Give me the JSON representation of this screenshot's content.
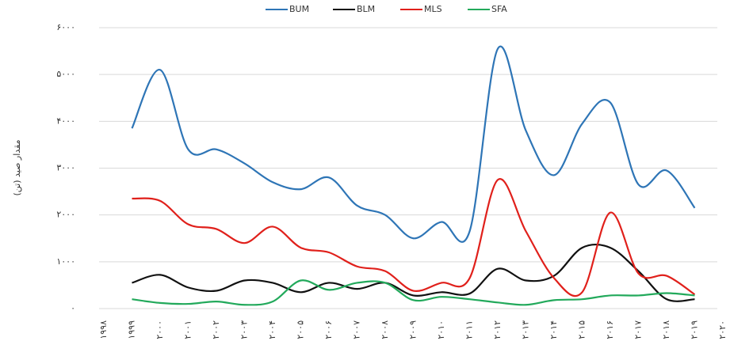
{
  "chart_data": {
    "type": "line",
    "y_label": "مقدار صید (تن)",
    "categories": [
      "۱۹۹۸",
      "۱۹۹۹",
      "۲۰۰۰",
      "۲۰۰۱",
      "۲۰۰۲",
      "۲۰۰۳",
      "۲۰۰۴",
      "۲۰۰۵",
      "۲۰۰۶",
      "۲۰۰۷",
      "۲۰۰۸",
      "۲۰۰۹",
      "۲۰۱۰",
      "۲۰۱۱",
      "۲۰۱۲",
      "۲۰۱۳",
      "۲۰۱۴",
      "۲۰۱۵",
      "۲۰۱۶",
      "۲۰۱۷",
      "۲۰۱۸",
      "۲۰۱۹",
      "۲۰۲۰"
    ],
    "series": [
      {
        "name": "BUM",
        "color": "#2e75b6",
        "values": [
          null,
          3850,
          5100,
          3400,
          3400,
          3100,
          2700,
          2550,
          2800,
          2200,
          2000,
          1500,
          1850,
          1650,
          5550,
          3800,
          2850,
          3950,
          4400,
          2650,
          2950,
          2150,
          null
        ]
      },
      {
        "name": "BLM",
        "color": "#111111",
        "values": [
          null,
          550,
          720,
          450,
          380,
          600,
          550,
          350,
          550,
          420,
          550,
          280,
          350,
          320,
          850,
          600,
          700,
          1300,
          1300,
          800,
          200,
          200,
          null
        ]
      },
      {
        "name": "MLS",
        "color": "#e0201b",
        "values": [
          null,
          2350,
          2300,
          1800,
          1700,
          1400,
          1750,
          1300,
          1200,
          900,
          800,
          380,
          550,
          650,
          2750,
          1650,
          650,
          350,
          2050,
          750,
          700,
          300,
          null
        ]
      },
      {
        "name": "SFA",
        "color": "#22a95b",
        "values": [
          null,
          200,
          120,
          100,
          150,
          80,
          150,
          600,
          400,
          550,
          550,
          180,
          250,
          200,
          130,
          80,
          180,
          200,
          280,
          280,
          330,
          280,
          null
        ]
      }
    ],
    "ylim": [
      0,
      6000
    ],
    "yticks": [
      {
        "value": 0,
        "label": "۰"
      },
      {
        "value": 1000,
        "label": "۱۰۰۰"
      },
      {
        "value": 2000,
        "label": "۲۰۰۰"
      },
      {
        "value": 3000,
        "label": "۳۰۰۰"
      },
      {
        "value": 4000,
        "label": "۴۰۰۰"
      },
      {
        "value": 5000,
        "label": "۵۰۰۰"
      },
      {
        "value": 6000,
        "label": "۶۰۰۰"
      }
    ],
    "grid": true,
    "legend": "top"
  }
}
